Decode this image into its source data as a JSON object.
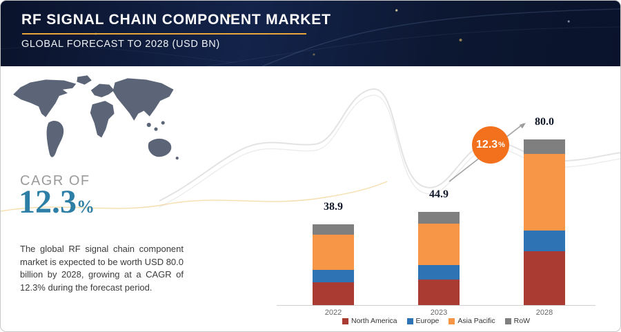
{
  "header": {
    "title": "RF SIGNAL CHAIN COMPONENT MARKET",
    "subtitle": "GLOBAL FORECAST TO 2028 (USD BN)"
  },
  "cagr": {
    "label": "CAGR OF",
    "value": "12.3",
    "percent_sign": "%"
  },
  "description": "The global RF signal chain component market is expected to be worth USD 80.0 billion by 2028, growing at a CAGR of 12.3% during the forecast period.",
  "badge": {
    "value": "12.3",
    "percent": "%"
  },
  "colors": {
    "header_navy": "#0c1731",
    "accent_orange": "#f3701d",
    "underline_gold": "#e9a63a",
    "cagr_teal": "#2e7fa6",
    "map_gray": "#5b6577"
  },
  "chart_data": {
    "type": "bar",
    "stacked": true,
    "title": "RF Signal Chain Component Market, Global Forecast to 2028 (USD BN)",
    "categories": [
      "2022",
      "2023",
      "2028"
    ],
    "totals": [
      38.9,
      44.9,
      80.0
    ],
    "total_labels": [
      "38.9",
      "44.9",
      "80.0"
    ],
    "series": [
      {
        "name": "North America",
        "color": "#a93b32",
        "values": [
          11.0,
          12.5,
          26.0
        ]
      },
      {
        "name": "Europe",
        "color": "#2e74b5",
        "values": [
          6.0,
          7.0,
          10.0
        ]
      },
      {
        "name": "Asia Pacific",
        "color": "#f79646",
        "values": [
          17.0,
          20.0,
          37.0
        ]
      },
      {
        "name": "RoW",
        "color": "#7f7f7f",
        "values": [
          4.9,
          5.4,
          7.0
        ]
      }
    ],
    "annotation": {
      "label": "12.3%",
      "from_total": "44.9",
      "to_total": "80.0"
    },
    "legend_position": "bottom",
    "ylim": [
      0,
      80
    ],
    "grid": false
  }
}
